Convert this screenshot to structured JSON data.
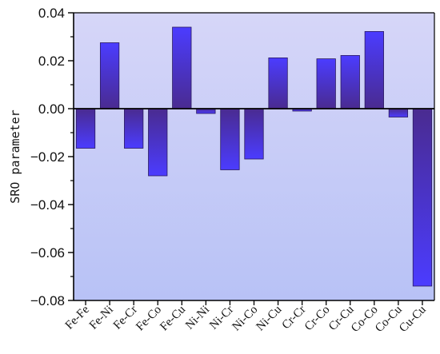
{
  "chart_data": {
    "type": "bar",
    "title": "",
    "xlabel": "",
    "ylabel": "SRO parameter",
    "ylim": [
      -0.08,
      0.04
    ],
    "yticks": [
      0.04,
      0.02,
      0.0,
      -0.02,
      -0.04,
      -0.06,
      -0.08
    ],
    "ytick_labels": [
      "0.04",
      "0.02",
      "0.00",
      "−0.02",
      "−0.04",
      "−0.06",
      "−0.08"
    ],
    "categories": [
      "Fe-Fe",
      "Fe-Ni",
      "Fe-Cr",
      "Fe-Co",
      "Fe-Cu",
      "Ni-Ni",
      "Ni-Cr",
      "Ni-Co",
      "Ni-Cu",
      "Cr-Cr",
      "Cr-Co",
      "Cr-Cu",
      "Co-Co",
      "Co-Cu",
      "Cu-Cu"
    ],
    "values": [
      -0.0165,
      0.0275,
      -0.0165,
      -0.028,
      0.034,
      -0.002,
      -0.0255,
      -0.021,
      0.0212,
      -0.001,
      0.0208,
      0.0222,
      0.0322,
      -0.0035,
      -0.074
    ],
    "grid": false,
    "legend": "none",
    "colors": {
      "background_top": "#d6d6f8",
      "background_bottom": "#b8c2f6",
      "bar_light": "#4b3cff",
      "bar_dark": "#4a2b90",
      "zero_line": "#000000",
      "axis": "#000000"
    }
  }
}
